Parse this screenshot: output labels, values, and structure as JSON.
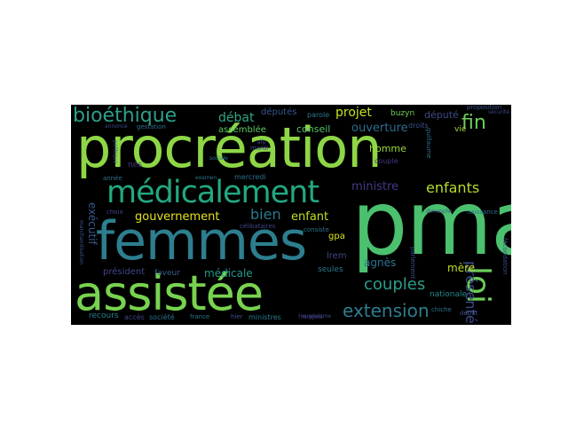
{
  "colors": {
    "background": "#000000",
    "page": "#ffffff"
  },
  "words": [
    {
      "text": "procréation",
      "color": "#8ed646"
    },
    {
      "text": "pma",
      "color": "#4bc06f"
    },
    {
      "text": "femmes",
      "color": "#2d7e8e"
    },
    {
      "text": "assistée",
      "color": "#78d34f"
    },
    {
      "text": "médicalement",
      "color": "#22a882"
    },
    {
      "text": "bioéthique",
      "color": "#2e9f8a"
    },
    {
      "text": "loi",
      "color": "#6bcd5a"
    },
    {
      "text": "présenté",
      "color": "#3e4b89"
    },
    {
      "text": "couples",
      "color": "#2a9d8c"
    },
    {
      "text": "extension",
      "color": "#2d7e8e"
    },
    {
      "text": "enfants",
      "color": "#b5dd2b"
    },
    {
      "text": "fin",
      "color": "#6cce59"
    },
    {
      "text": "débat",
      "color": "#2da788"
    },
    {
      "text": "projet",
      "color": "#c8e020"
    },
    {
      "text": "gouvernement",
      "color": "#e3e31e"
    },
    {
      "text": "bien",
      "color": "#2a788e"
    },
    {
      "text": "enfant",
      "color": "#c2df23"
    },
    {
      "text": "ministre",
      "color": "#453882"
    },
    {
      "text": "ouverture",
      "color": "#2e6c8e"
    },
    {
      "text": "député",
      "color": "#3e4a89"
    },
    {
      "text": "homme",
      "color": "#9bd93c"
    },
    {
      "text": "couple",
      "color": "#46327e"
    },
    {
      "text": "députés",
      "color": "#39558c"
    },
    {
      "text": "assemblée",
      "color": "#5cc863"
    },
    {
      "text": "conseil",
      "color": "#52c569"
    },
    {
      "text": "exécutif",
      "color": "#37598c"
    },
    {
      "text": "nés",
      "color": "#453781"
    },
    {
      "text": "mère",
      "color": "#c2df23"
    },
    {
      "text": "agnès",
      "color": "#2c728e"
    },
    {
      "text": "lrem",
      "color": "#3f4788"
    },
    {
      "text": "gpa",
      "color": "#dde318"
    },
    {
      "text": "médicale",
      "color": "#1f9a8a"
    },
    {
      "text": "faveur",
      "color": "#355f8d"
    },
    {
      "text": "président",
      "color": "#404688"
    },
    {
      "text": "recours",
      "color": "#26828e"
    },
    {
      "text": "accès",
      "color": "#404588"
    },
    {
      "text": "société",
      "color": "#2c718e"
    },
    {
      "text": "france",
      "color": "#297a8e"
    },
    {
      "text": "hier",
      "color": "#3b528b"
    },
    {
      "text": "ministres",
      "color": "#287d8e"
    },
    {
      "text": "français",
      "color": "#453581"
    },
    {
      "text": "nationale",
      "color": "#24878e"
    },
    {
      "text": "parlement",
      "color": "#3b518b"
    },
    {
      "text": "seules",
      "color": "#2a768e"
    },
    {
      "text": "vie",
      "color": "#a0da39"
    },
    {
      "text": "droits",
      "color": "#3a548c"
    },
    {
      "text": "buzyn",
      "color": "#6ece58"
    },
    {
      "text": "parole",
      "color": "#2a778e"
    },
    {
      "text": "mardi",
      "color": "#3d4e8a"
    },
    {
      "text": "mercredi",
      "color": "#2d718e"
    },
    {
      "text": "examen",
      "color": "#2a768e"
    },
    {
      "text": "année",
      "color": "#2b748e"
    },
    {
      "text": "gestation",
      "color": "#2c728e"
    },
    {
      "text": "annoncé",
      "color": "#3e4c8a"
    },
    {
      "text": "politique",
      "color": "#3b518b"
    },
    {
      "text": "choix",
      "color": "#404688"
    },
    {
      "text": "sociale",
      "color": "#2c728e"
    },
    {
      "text": "afp",
      "color": "#3a538b"
    },
    {
      "text": "dimanche",
      "color": "#3d4d8a"
    },
    {
      "text": "naissance",
      "color": "#2d708e"
    },
    {
      "text": "début",
      "color": "#3c4f8a"
    },
    {
      "text": "chiche",
      "color": "#2b748e"
    },
    {
      "text": "consiste",
      "color": "#2d718e"
    },
    {
      "text": "célibataires",
      "color": "#3f4889"
    },
    {
      "text": "eugénisme",
      "color": "#3e4c8a"
    },
    {
      "text": "marchandisation",
      "color": "#3b528b"
    },
    {
      "text": "guillaume",
      "color": "#2c718e"
    },
    {
      "text": "proposition",
      "color": "#3a548c"
    },
    {
      "text": "sécurité",
      "color": "#3e4a89"
    },
    {
      "text": "fécondation",
      "color": "#3c4f8a"
    }
  ]
}
